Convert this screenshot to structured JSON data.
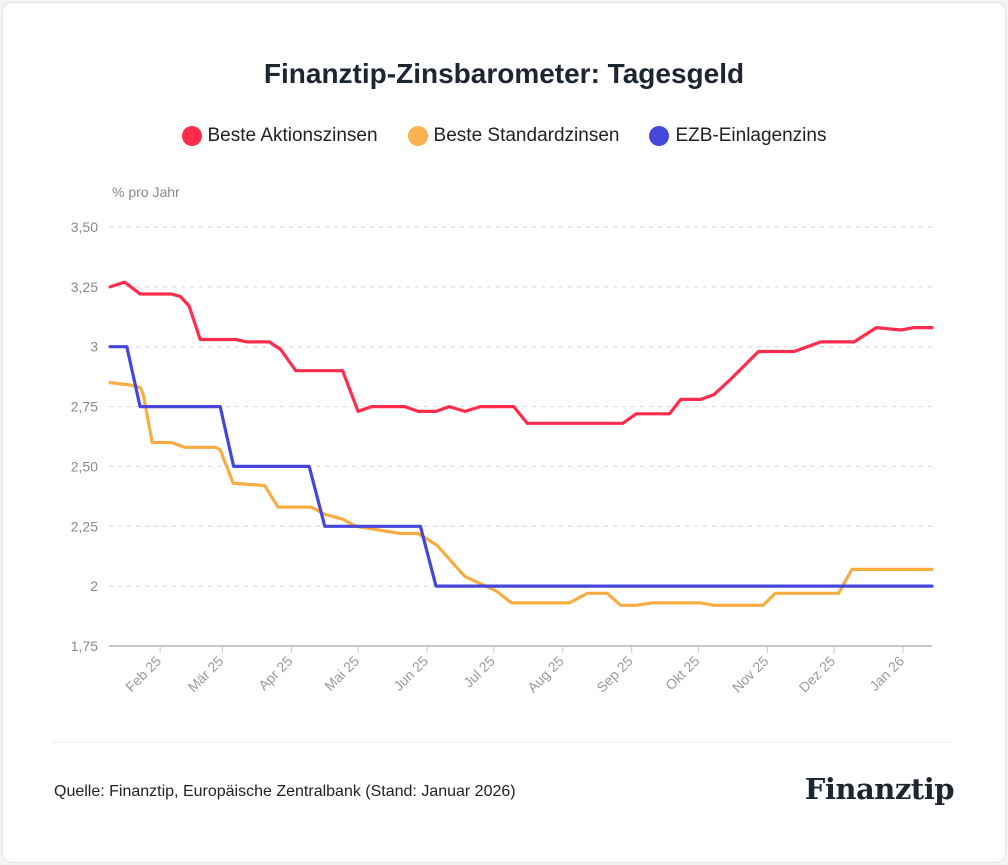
{
  "chart_data": {
    "type": "line",
    "title": "Finanztip-Zinsbarometer: Tagesgeld",
    "ylabel": "% pro Jahr",
    "xlabel": "",
    "x_unit": "days since 2025-01-01",
    "xlim": [
      8,
      378
    ],
    "ylim": [
      1.75,
      3.5
    ],
    "grid": true,
    "legend_position": "top",
    "yticks": [
      {
        "value": 3.5,
        "label": "3,50"
      },
      {
        "value": 3.25,
        "label": "3,25"
      },
      {
        "value": 3.0,
        "label": "3"
      },
      {
        "value": 2.75,
        "label": "2,75"
      },
      {
        "value": 2.5,
        "label": "2,50"
      },
      {
        "value": 2.25,
        "label": "2,25"
      },
      {
        "value": 2.0,
        "label": "2"
      },
      {
        "value": 1.75,
        "label": "1,75"
      }
    ],
    "xticks": [
      {
        "value": 31,
        "label": "Feb 25"
      },
      {
        "value": 59,
        "label": "Mär 25"
      },
      {
        "value": 90,
        "label": "Apr 25"
      },
      {
        "value": 120,
        "label": "Mai 25"
      },
      {
        "value": 151,
        "label": "Jun 25"
      },
      {
        "value": 181,
        "label": "Jul 25"
      },
      {
        "value": 212,
        "label": "Aug 25"
      },
      {
        "value": 243,
        "label": "Sep 25"
      },
      {
        "value": 273,
        "label": "Okt 25"
      },
      {
        "value": 304,
        "label": "Nov 25"
      },
      {
        "value": 334,
        "label": "Dez 25"
      },
      {
        "value": 365,
        "label": "Jan 26"
      }
    ],
    "series": [
      {
        "name": "Beste Aktionszinsen",
        "color": "#ff2d4b",
        "points": [
          [
            8.5,
            3.25
          ],
          [
            15,
            3.27
          ],
          [
            22,
            3.22
          ],
          [
            36,
            3.22
          ],
          [
            40,
            3.21
          ],
          [
            44,
            3.17
          ],
          [
            49,
            3.03
          ],
          [
            65,
            3.03
          ],
          [
            70,
            3.02
          ],
          [
            80,
            3.02
          ],
          [
            85,
            2.99
          ],
          [
            92,
            2.9
          ],
          [
            113,
            2.9
          ],
          [
            120,
            2.73
          ],
          [
            126,
            2.75
          ],
          [
            141,
            2.75
          ],
          [
            147,
            2.73
          ],
          [
            155,
            2.73
          ],
          [
            161,
            2.75
          ],
          [
            168,
            2.73
          ],
          [
            175,
            2.75
          ],
          [
            190,
            2.75
          ],
          [
            196,
            2.68
          ],
          [
            239,
            2.68
          ],
          [
            245,
            2.72
          ],
          [
            260,
            2.72
          ],
          [
            265,
            2.78
          ],
          [
            274,
            2.78
          ],
          [
            280,
            2.8
          ],
          [
            287,
            2.86
          ],
          [
            300,
            2.98
          ],
          [
            316,
            2.98
          ],
          [
            328,
            3.02
          ],
          [
            343,
            3.02
          ],
          [
            353,
            3.08
          ],
          [
            364,
            3.07
          ],
          [
            370,
            3.08
          ],
          [
            378,
            3.08
          ]
        ]
      },
      {
        "name": "Beste Standardzinsen",
        "color": "#f8ad42",
        "points": [
          [
            8.5,
            2.85
          ],
          [
            17.5,
            2.84
          ],
          [
            22,
            2.83
          ],
          [
            23.4,
            2.8
          ],
          [
            27.4,
            2.6
          ],
          [
            36,
            2.6
          ],
          [
            42,
            2.58
          ],
          [
            55.7,
            2.58
          ],
          [
            58,
            2.57
          ],
          [
            63.8,
            2.43
          ],
          [
            78,
            2.42
          ],
          [
            84,
            2.33
          ],
          [
            99,
            2.33
          ],
          [
            105,
            2.3
          ],
          [
            113,
            2.28
          ],
          [
            119,
            2.25
          ],
          [
            139,
            2.22
          ],
          [
            147,
            2.22
          ],
          [
            155.5,
            2.17
          ],
          [
            168,
            2.04
          ],
          [
            175,
            2.01
          ],
          [
            182,
            1.98
          ],
          [
            189,
            1.93
          ],
          [
            215,
            1.93
          ],
          [
            223,
            1.97
          ],
          [
            232,
            1.97
          ],
          [
            238,
            1.92
          ],
          [
            245,
            1.92
          ],
          [
            252,
            1.93
          ],
          [
            274,
            1.93
          ],
          [
            280,
            1.92
          ],
          [
            302,
            1.92
          ],
          [
            307.5,
            1.97
          ],
          [
            336,
            1.97
          ],
          [
            342,
            2.07
          ],
          [
            378,
            2.07
          ]
        ]
      },
      {
        "name": "EZB-Einlagenzins",
        "color": "#4646dc",
        "points": [
          [
            8.5,
            3.0
          ],
          [
            16,
            3.0
          ],
          [
            22,
            2.75
          ],
          [
            58,
            2.75
          ],
          [
            64,
            2.5
          ],
          [
            98,
            2.5
          ],
          [
            105,
            2.25
          ],
          [
            148,
            2.25
          ],
          [
            155,
            2.0
          ],
          [
            378,
            2.0
          ]
        ]
      }
    ]
  },
  "footer": {
    "source": "Quelle: Finanztip, Europäische Zentralbank (Stand: Januar 2026)",
    "logo": "Finanztip"
  }
}
